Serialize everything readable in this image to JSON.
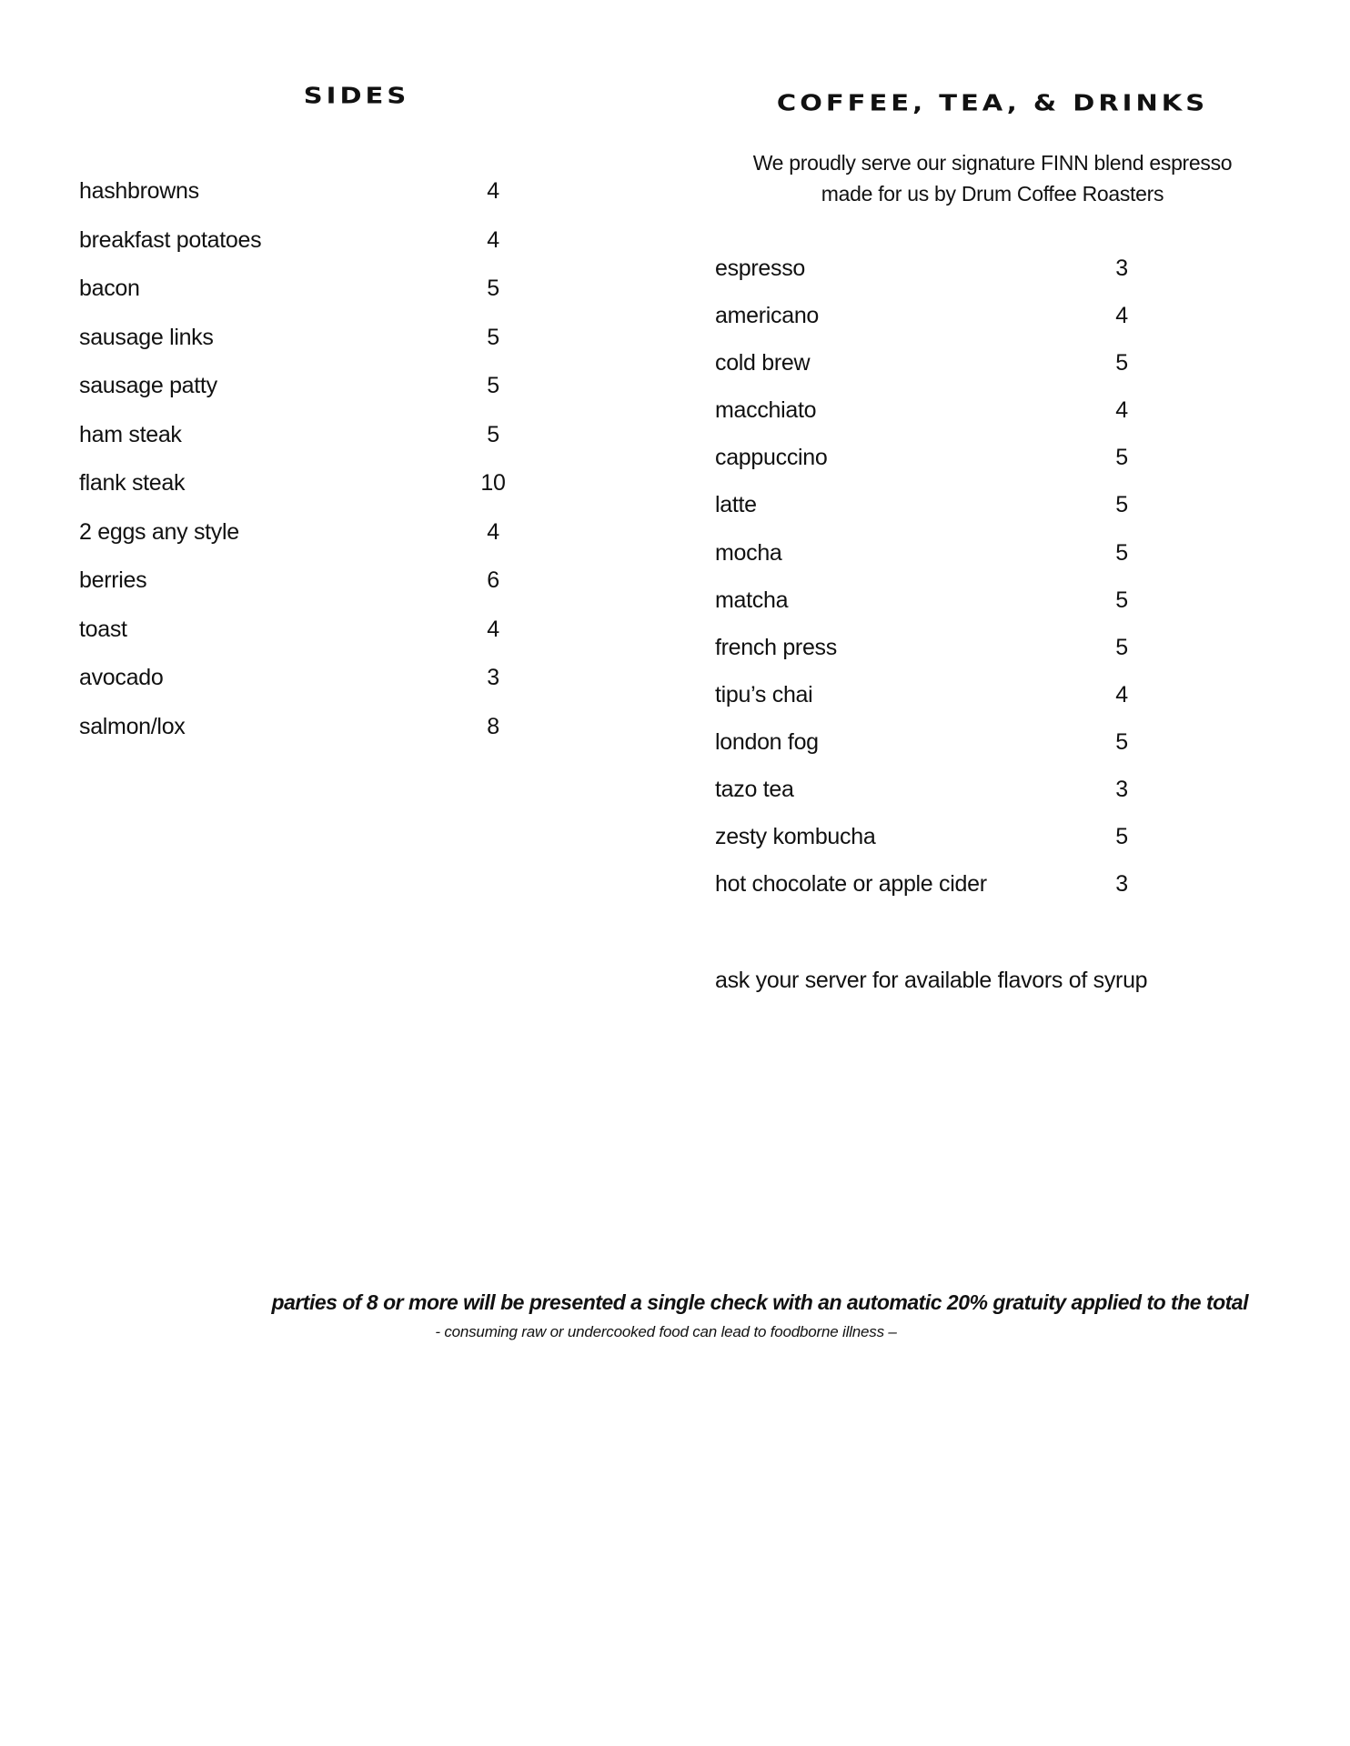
{
  "sides": {
    "title": "SIDES",
    "items": [
      {
        "name": "hashbrowns",
        "price": "4"
      },
      {
        "name": "breakfast potatoes",
        "price": "4"
      },
      {
        "name": "bacon",
        "price": "5"
      },
      {
        "name": "sausage links",
        "price": "5"
      },
      {
        "name": "sausage patty",
        "price": "5"
      },
      {
        "name": "ham steak",
        "price": "5"
      },
      {
        "name": "flank steak",
        "price": "10"
      },
      {
        "name": "2 eggs any style",
        "price": "4"
      },
      {
        "name": "berries",
        "price": "6"
      },
      {
        "name": "toast",
        "price": "4"
      },
      {
        "name": "avocado",
        "price": "3"
      },
      {
        "name": "salmon/lox",
        "price": "8"
      }
    ]
  },
  "drinks": {
    "title": "COFFEE, TEA, & DRINKS",
    "subtitle_line1": "We proudly serve our signature FINN blend espresso",
    "subtitle_line2": "made for us by Drum Coffee Roasters",
    "items": [
      {
        "name": "espresso",
        "price": "3"
      },
      {
        "name": "americano",
        "price": "4"
      },
      {
        "name": "cold brew",
        "price": "5"
      },
      {
        "name": "macchiato",
        "price": "4"
      },
      {
        "name": "cappuccino",
        "price": "5"
      },
      {
        "name": "latte",
        "price": "5"
      },
      {
        "name": "mocha",
        "price": "5"
      },
      {
        "name": "matcha",
        "price": "5"
      },
      {
        "name": "french press",
        "price": "5"
      },
      {
        "name": "tipu’s chai",
        "price": "4"
      },
      {
        "name": "london fog",
        "price": "5"
      },
      {
        "name": "tazo tea",
        "price": "3"
      },
      {
        "name": "zesty kombucha",
        "price": "5"
      },
      {
        "name": "hot chocolate or apple cider",
        "price": "3"
      }
    ],
    "note": "ask your server for available flavors of syrup"
  },
  "footer": {
    "gratuity": "parties of 8 or more will be presented a single check with an automatic 20% gratuity applied to the total",
    "warning": "- consuming raw or undercooked food can lead to foodborne illness –"
  }
}
